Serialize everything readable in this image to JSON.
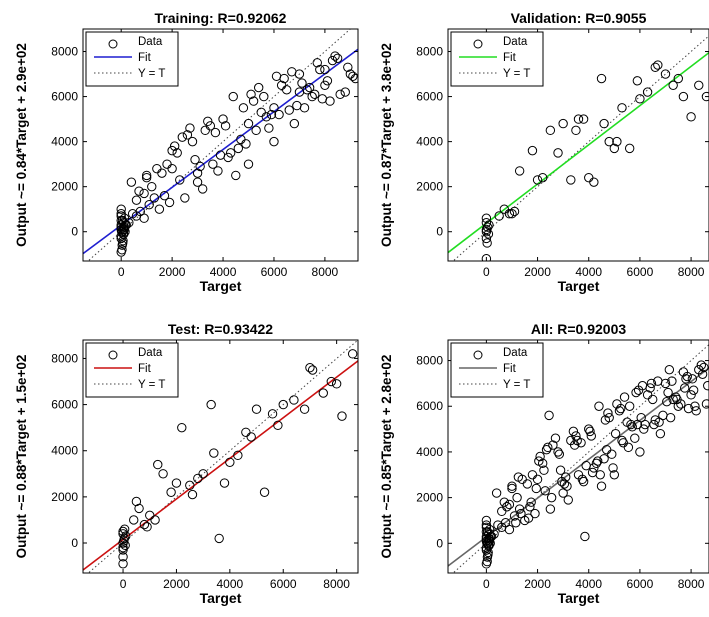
{
  "chart_data": [
    {
      "type": "scatter",
      "title": "Training: R=0.92062",
      "xlabel": "Target",
      "ylabel": "Output ~= 0.84*Target + 2.9e+02",
      "xlim": [
        -1500,
        9300
      ],
      "ylim": [
        -1300,
        9000
      ],
      "xticks": [
        0,
        2000,
        4000,
        6000,
        8000
      ],
      "yticks": [
        0,
        2000,
        4000,
        6000,
        8000
      ],
      "fit": {
        "slope": 0.84,
        "intercept": 290,
        "color": "#1f1fd0"
      },
      "legend": {
        "position": "top-left",
        "entries": [
          "Data",
          "Fit",
          "Y = T"
        ]
      },
      "series": [
        {
          "x": [
            0,
            50,
            100,
            0,
            80,
            120,
            0,
            60,
            150,
            0,
            30,
            200,
            100,
            0,
            90,
            0,
            40,
            110,
            0,
            70,
            130,
            0,
            20,
            160,
            50,
            0,
            100,
            0,
            300,
            450,
            600,
            750,
            900,
            1100,
            1300,
            400,
            700,
            1000,
            1500,
            1800,
            2000,
            2200,
            2500,
            2800,
            3000,
            3300,
            3600,
            4000,
            4300,
            4500,
            4800,
            5000,
            5300,
            5600,
            6000,
            6200,
            6500,
            6800,
            7000,
            7200,
            7500,
            7800,
            8000,
            8200,
            8500,
            8800,
            9000,
            9200,
            1200,
            1600,
            2100,
            2700,
            3100,
            3500,
            3900,
            4400,
            4900,
            5400,
            5900,
            6400,
            6900,
            7300,
            7700,
            8100,
            8600,
            600,
            900,
            1400,
            1900,
            2400,
            2900,
            3400,
            3800,
            4200,
            4700,
            5200,
            5700,
            6100,
            6600,
            7100,
            7600,
            8300,
            8900,
            1700,
            2600,
            3200,
            3700,
            4600,
            5100,
            5500,
            5800,
            6300,
            6700,
            7400,
            7900,
            8400,
            1000,
            2300,
            2000,
            3000,
            4100,
            5000,
            6000,
            7000,
            8000,
            9100
          ],
          "y": [
            -300,
            0,
            200,
            300,
            -100,
            100,
            500,
            -500,
            0,
            700,
            -800,
            300,
            400,
            -200,
            100,
            800,
            -600,
            200,
            100,
            -400,
            600,
            -900,
            0,
            300,
            500,
            200,
            -100,
            1000,
            400,
            800,
            700,
            900,
            600,
            1200,
            1500,
            2200,
            1800,
            2500,
            1000,
            3000,
            2800,
            3500,
            1500,
            4000,
            2200,
            4500,
            3000,
            5000,
            3500,
            2500,
            5500,
            3000,
            4500,
            6000,
            4000,
            5200,
            6300,
            4800,
            7000,
            5500,
            6000,
            7200,
            6500,
            5800,
            7700,
            6200,
            7000,
            6800,
            2000,
            2600,
            3800,
            4600,
            2900,
            4700,
            3400,
            6000,
            3900,
            6400,
            5200,
            6800,
            5600,
            6300,
            7500,
            6700,
            6100,
            1400,
            1700,
            2800,
            1300,
            4200,
            3200,
            4900,
            2700,
            3300,
            4100,
            5800,
            5100,
            6900,
            5400,
            6600,
            6100,
            7600,
            7300,
            1600,
            4300,
            1900,
            4400,
            3700,
            6100,
            5300,
            4600,
            6500,
            7100,
            6400,
            5900,
            7800,
            2400,
            2300,
            3600,
            2600,
            4700,
            4800,
            5500,
            6200,
            7200,
            6900
          ]
        }
      ]
    },
    {
      "type": "scatter",
      "title": "Validation: R=0.9055",
      "xlabel": "Target",
      "ylabel": "Output ~= 0.87*Target + 3.8e+02",
      "xlim": [
        -1500,
        8700
      ],
      "ylim": [
        -1300,
        9000
      ],
      "xticks": [
        0,
        2000,
        4000,
        6000,
        8000
      ],
      "yticks": [
        0,
        2000,
        4000,
        6000,
        8000
      ],
      "fit": {
        "slope": 0.87,
        "intercept": 380,
        "color": "#22dd22"
      },
      "legend": {
        "position": "top-left",
        "entries": [
          "Data",
          "Fit",
          "Y = T"
        ]
      },
      "series": [
        {
          "x": [
            0,
            50,
            0,
            100,
            0,
            30,
            0,
            80,
            0,
            0,
            500,
            700,
            900,
            1100,
            1300,
            1800,
            2200,
            2500,
            2800,
            3000,
            3300,
            3500,
            3800,
            4000,
            4200,
            4500,
            4800,
            5000,
            5300,
            5600,
            6000,
            6300,
            6600,
            7000,
            7300,
            7700,
            8000,
            8300,
            8600,
            1000,
            2000,
            3600,
            4600,
            5100,
            5900,
            6700,
            7500
          ],
          "y": [
            0,
            200,
            -300,
            300,
            600,
            -500,
            100,
            -100,
            400,
            -1200,
            700,
            1000,
            800,
            900,
            2700,
            3600,
            2400,
            4500,
            3500,
            4800,
            2300,
            4500,
            5000,
            2400,
            2200,
            6800,
            4000,
            3700,
            5500,
            3700,
            5900,
            6200,
            7300,
            7000,
            6500,
            6000,
            5100,
            6500,
            6000,
            800,
            2300,
            5000,
            4800,
            4000,
            6700,
            7400,
            6800
          ]
        }
      ]
    },
    {
      "type": "scatter",
      "title": "Test: R=0.93422",
      "xlabel": "Target",
      "ylabel": "Output ~= 0.88*Target + 1.5e+02",
      "xlim": [
        -1500,
        8800
      ],
      "ylim": [
        -1300,
        8800
      ],
      "xticks": [
        0,
        2000,
        4000,
        6000,
        8000
      ],
      "yticks": [
        0,
        2000,
        4000,
        6000,
        8000
      ],
      "fit": {
        "slope": 0.88,
        "intercept": 150,
        "color": "#cc1111"
      },
      "legend": {
        "position": "top-left",
        "entries": [
          "Data",
          "Fit",
          "Y = T"
        ]
      },
      "series": [
        {
          "x": [
            0,
            50,
            0,
            100,
            0,
            30,
            0,
            80,
            0,
            0,
            60,
            0,
            400,
            600,
            800,
            1000,
            1200,
            1500,
            1800,
            2000,
            2200,
            2500,
            2800,
            3000,
            3300,
            3600,
            4000,
            4300,
            4600,
            5000,
            5300,
            5600,
            6000,
            6400,
            6800,
            7100,
            7500,
            7800,
            8200,
            8600,
            500,
            900,
            1300,
            2600,
            3400,
            3800,
            4800,
            5800,
            7000,
            8000
          ],
          "y": [
            0,
            200,
            -300,
            300,
            -200,
            100,
            500,
            -100,
            400,
            -600,
            600,
            -900,
            1000,
            1500,
            800,
            1200,
            1000,
            3000,
            2200,
            2600,
            5000,
            2500,
            2800,
            3000,
            6000,
            200,
            3500,
            3800,
            4800,
            5800,
            2200,
            5600,
            6000,
            6200,
            5800,
            7500,
            6500,
            7000,
            5500,
            8200,
            1800,
            700,
            3400,
            2100,
            3900,
            2600,
            4600,
            5100,
            7600,
            6900
          ]
        }
      ]
    },
    {
      "type": "scatter",
      "title": "All: R=0.92003",
      "xlabel": "Target",
      "ylabel": "Output ~= 0.85*Target + 2.8e+02",
      "xlim": [
        -1500,
        8700
      ],
      "ylim": [
        -1300,
        8900
      ],
      "xticks": [
        0,
        2000,
        4000,
        6000,
        8000
      ],
      "yticks": [
        0,
        2000,
        4000,
        6000,
        8000
      ],
      "fit": {
        "slope": 0.85,
        "intercept": 280,
        "color": "#666666"
      },
      "legend": {
        "position": "top-left",
        "entries": [
          "Data",
          "Fit",
          "Y = T"
        ]
      },
      "series": [
        {
          "x": [
            0,
            50,
            100,
            0,
            80,
            120,
            0,
            60,
            150,
            0,
            30,
            200,
            100,
            0,
            90,
            0,
            40,
            110,
            0,
            70,
            130,
            0,
            20,
            160,
            50,
            0,
            100,
            0,
            300,
            450,
            600,
            750,
            900,
            1100,
            1300,
            400,
            700,
            1000,
            1500,
            1800,
            2000,
            2200,
            2500,
            2800,
            3000,
            3300,
            3600,
            4000,
            4300,
            4500,
            4800,
            5000,
            5300,
            5600,
            6000,
            6200,
            6500,
            6800,
            7000,
            7200,
            7500,
            7800,
            8000,
            8200,
            8500,
            1200,
            1600,
            2100,
            2700,
            3100,
            3500,
            3900,
            4400,
            4900,
            5400,
            5900,
            6400,
            6900,
            7300,
            7700,
            8100,
            8600,
            600,
            900,
            1400,
            1900,
            2400,
            2900,
            3400,
            3800,
            4200,
            4700,
            5200,
            5700,
            6100,
            6600,
            7100,
            7600,
            8300,
            1700,
            2600,
            3200,
            3700,
            4600,
            5100,
            5500,
            5800,
            6300,
            6700,
            7400,
            7900,
            8400,
            1000,
            2300,
            2050,
            3050,
            4100,
            5050,
            6050,
            7050,
            8050,
            8650,
            500,
            1150,
            1350,
            1650,
            1950,
            2250,
            2550,
            2850,
            3150,
            3450,
            3750,
            4050,
            4350,
            4650,
            4950,
            5250,
            5550,
            5850,
            6150,
            6450,
            6750,
            7150,
            7450,
            7750,
            8150,
            8450,
            800,
            1250,
            1750,
            2350,
            2950,
            3550,
            4150,
            4750,
            5350,
            5950,
            6550,
            7250,
            7850,
            3850,
            4450,
            2450,
            5650
          ],
          "y": [
            -300,
            0,
            200,
            300,
            -100,
            100,
            500,
            -500,
            0,
            700,
            -800,
            300,
            400,
            -200,
            100,
            800,
            -600,
            200,
            100,
            -400,
            600,
            -900,
            0,
            300,
            500,
            200,
            -100,
            1000,
            400,
            800,
            700,
            900,
            600,
            1200,
            1500,
            2200,
            1800,
            2500,
            1000,
            3000,
            2800,
            3500,
            1500,
            4000,
            2200,
            4500,
            3000,
            5000,
            3500,
            2500,
            5500,
            3000,
            4500,
            6000,
            4000,
            5200,
            6300,
            4800,
            7000,
            5500,
            6000,
            7200,
            6500,
            5800,
            7700,
            2000,
            2600,
            3800,
            4600,
            2900,
            4700,
            3400,
            6000,
            3900,
            6400,
            5200,
            6800,
            5600,
            6300,
            7500,
            6700,
            6100,
            1400,
            1700,
            2800,
            1300,
            4200,
            3200,
            4900,
            2700,
            3300,
            4100,
            5800,
            5100,
            6900,
            5400,
            6600,
            6100,
            7600,
            1600,
            4300,
            1900,
            4400,
            3700,
            6100,
            5300,
            4600,
            6500,
            7100,
            6400,
            5900,
            7800,
            2400,
            2300,
            3600,
            2600,
            4700,
            4800,
            5500,
            6200,
            7200,
            6900,
            8200,
            900,
            1300,
            1100,
            2400,
            3200,
            2000,
            3900,
            2500,
            4300,
            2800,
            4900,
            3600,
            5400,
            3300,
            5900,
            4200,
            6600,
            5000,
            7000,
            5300,
            7600,
            6300,
            6800,
            6000,
            7400,
            1600,
            2900,
            1800,
            4100,
            2700,
            4500,
            3100,
            5700,
            4400,
            6700,
            5200,
            7100,
            7300,
            300,
            3000,
            5600,
            5200
          ]
        }
      ]
    }
  ]
}
